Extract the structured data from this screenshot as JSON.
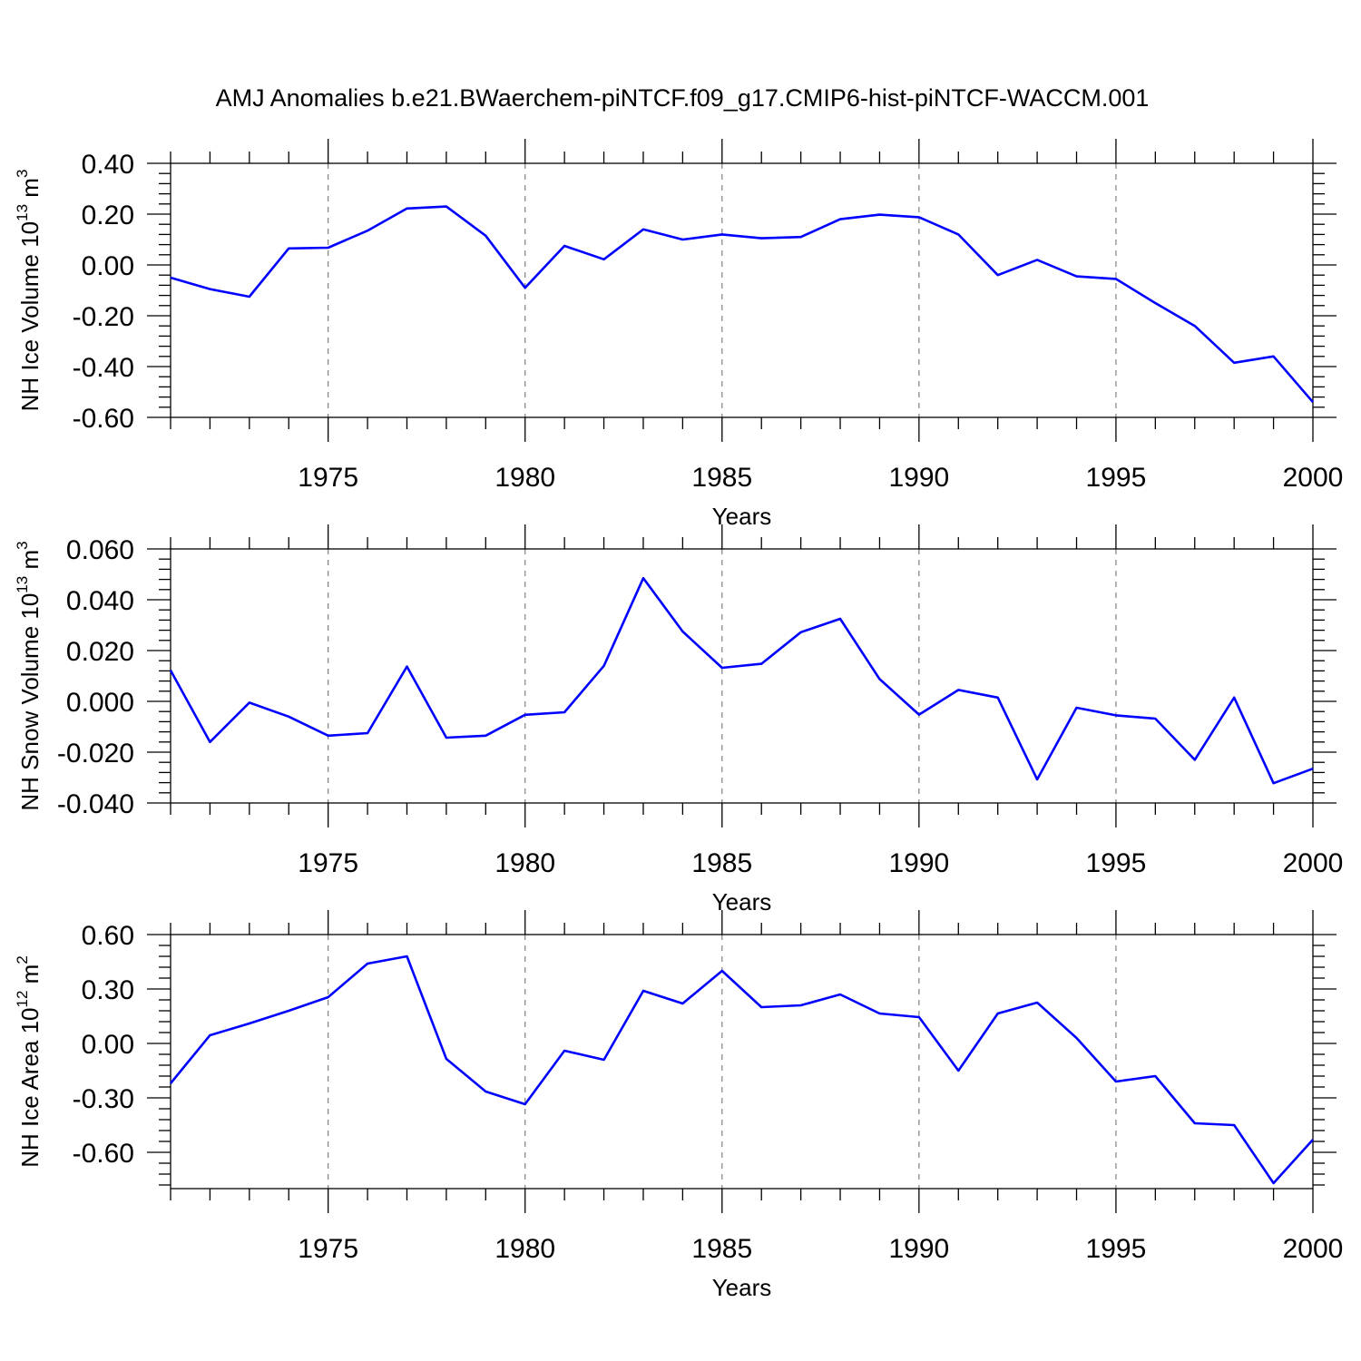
{
  "title": "AMJ Anomalies b.e21.BWaerchem-piNTCF.f09_g17.CMIP6-hist-piNTCF-WACCM.001",
  "line_color": "#0000ff",
  "chart_data": [
    {
      "type": "line",
      "id": "ice-volume",
      "ylabel": "NH Ice Volume 10",
      "ylabel_exp": "13",
      "ylabel_unit": " m",
      "ylabel_unit_exp": "3",
      "xlabel": "Years",
      "xlim": [
        1971,
        2000
      ],
      "ylim": [
        -0.6,
        0.4
      ],
      "yticks": [
        -0.6,
        -0.4,
        -0.2,
        0.0,
        0.2,
        0.4
      ],
      "ytick_labels": [
        "-0.60",
        "-0.40",
        "-0.20",
        "0.00",
        "0.20",
        "0.40"
      ],
      "xticks": [
        1975,
        1980,
        1985,
        1990,
        1995,
        2000
      ],
      "xtick_labels": [
        "1975",
        "1980",
        "1985",
        "1990",
        "1995",
        "2000"
      ],
      "x": [
        1971,
        1972,
        1973,
        1974,
        1975,
        1976,
        1977,
        1978,
        1979,
        1980,
        1981,
        1982,
        1983,
        1984,
        1985,
        1986,
        1987,
        1988,
        1989,
        1990,
        1991,
        1992,
        1993,
        1994,
        1995,
        1996,
        1997,
        1998,
        1999,
        2000
      ],
      "values": [
        -0.05,
        -0.095,
        -0.125,
        0.065,
        0.068,
        0.135,
        0.222,
        0.23,
        0.115,
        -0.09,
        0.075,
        0.022,
        0.14,
        0.1,
        0.12,
        0.105,
        0.11,
        0.18,
        0.198,
        0.188,
        0.12,
        -0.04,
        0.02,
        -0.045,
        -0.055,
        -0.15,
        -0.24,
        -0.385,
        -0.36,
        -0.54
      ]
    },
    {
      "type": "line",
      "id": "snow-volume",
      "ylabel": "NH Snow Volume 10",
      "ylabel_exp": "13",
      "ylabel_unit": " m",
      "ylabel_unit_exp": "3",
      "xlabel": "Years",
      "xlim": [
        1971,
        2000
      ],
      "ylim": [
        -0.04,
        0.06
      ],
      "yticks": [
        -0.04,
        -0.02,
        0.0,
        0.02,
        0.04,
        0.06
      ],
      "ytick_labels": [
        "-0.040",
        "-0.020",
        "0.000",
        "0.020",
        "0.040",
        "0.060"
      ],
      "xticks": [
        1975,
        1980,
        1985,
        1990,
        1995,
        2000
      ],
      "xtick_labels": [
        "1975",
        "1980",
        "1985",
        "1990",
        "1995",
        "2000"
      ],
      "x": [
        1971,
        1972,
        1973,
        1974,
        1975,
        1976,
        1977,
        1978,
        1979,
        1980,
        1981,
        1982,
        1983,
        1984,
        1985,
        1986,
        1987,
        1988,
        1989,
        1990,
        1991,
        1992,
        1993,
        1994,
        1995,
        1996,
        1997,
        1998,
        1999,
        2000
      ],
      "values": [
        0.0122,
        -0.016,
        -0.0005,
        -0.006,
        -0.0135,
        -0.0125,
        0.0137,
        -0.0143,
        -0.0135,
        -0.0053,
        -0.0043,
        0.014,
        0.0485,
        0.0275,
        0.0132,
        0.0148,
        0.0272,
        0.0325,
        0.0088,
        -0.0052,
        0.0045,
        0.0015,
        -0.0307,
        -0.0025,
        -0.0055,
        -0.0068,
        -0.023,
        0.0015,
        -0.0322,
        -0.0265
      ]
    },
    {
      "type": "line",
      "id": "ice-area",
      "ylabel": "NH Ice Area 10",
      "ylabel_exp": "12",
      "ylabel_unit": " m",
      "ylabel_unit_exp": "2",
      "xlabel": "Years",
      "xlim": [
        1971,
        2000
      ],
      "ylim": [
        -0.8,
        0.6
      ],
      "yticks": [
        -0.6,
        -0.3,
        0.0,
        0.3,
        0.6
      ],
      "ytick_labels": [
        "-0.60",
        "-0.30",
        "0.00",
        "0.30",
        "0.60"
      ],
      "xticks": [
        1975,
        1980,
        1985,
        1990,
        1995,
        2000
      ],
      "xtick_labels": [
        "1975",
        "1980",
        "1985",
        "1990",
        "1995",
        "2000"
      ],
      "x": [
        1971,
        1972,
        1973,
        1974,
        1975,
        1976,
        1977,
        1978,
        1979,
        1980,
        1981,
        1982,
        1983,
        1984,
        1985,
        1986,
        1987,
        1988,
        1989,
        1990,
        1991,
        1992,
        1993,
        1994,
        1995,
        1996,
        1997,
        1998,
        1999,
        2000
      ],
      "values": [
        -0.22,
        0.045,
        0.11,
        0.18,
        0.255,
        0.44,
        0.48,
        -0.085,
        -0.265,
        -0.335,
        -0.04,
        -0.09,
        0.29,
        0.22,
        0.4,
        0.2,
        0.21,
        0.27,
        0.165,
        0.145,
        -0.15,
        0.165,
        0.225,
        0.03,
        -0.21,
        -0.18,
        -0.44,
        -0.45,
        -0.77,
        -0.53
      ]
    }
  ]
}
